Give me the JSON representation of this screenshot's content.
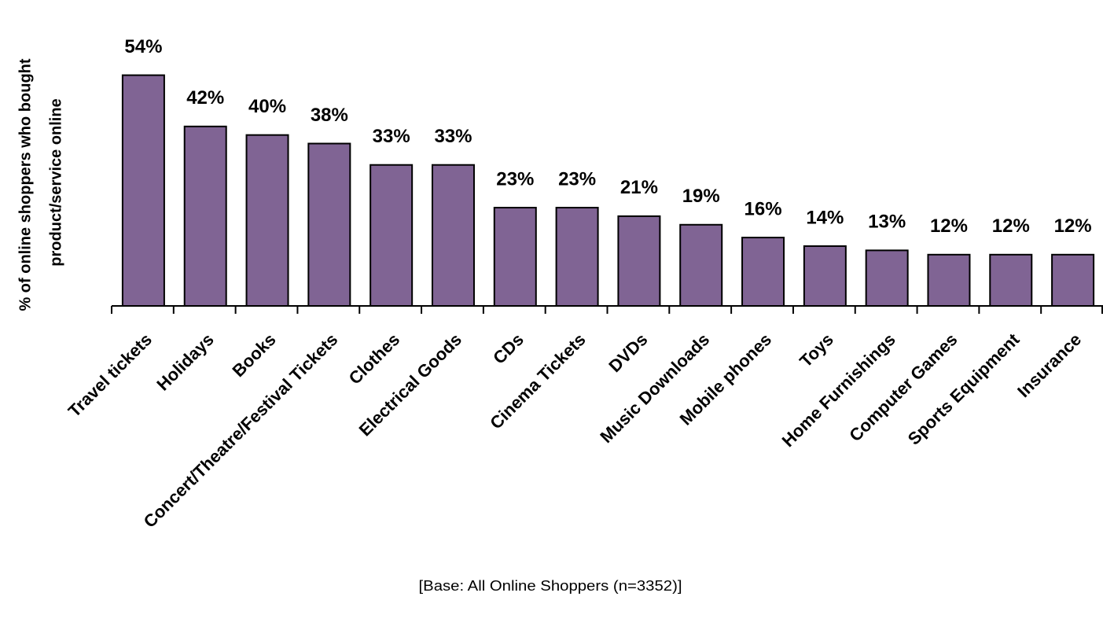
{
  "chart_data": {
    "type": "bar",
    "ylabel": [
      "% of online shoppers who bought",
      "product/service online"
    ],
    "categories": [
      "Travel tickets",
      "Holidays",
      "Books",
      "Concert/Theatre/Festival Tickets",
      "Clothes",
      "Electrical Goods",
      "CDs",
      "Cinema Tickets",
      "DVDs",
      "Music Downloads",
      "Mobile phones",
      "Toys",
      "Home Furnishings",
      "Computer Games",
      "Sports Equipment",
      "Insurance"
    ],
    "values": [
      54,
      42,
      40,
      38,
      33,
      33,
      23,
      23,
      21,
      19,
      16,
      14,
      13,
      12,
      12,
      12
    ],
    "value_labels": [
      "54%",
      "42%",
      "40%",
      "38%",
      "33%",
      "33%",
      "23%",
      "23%",
      "21%",
      "19%",
      "16%",
      "14%",
      "13%",
      "12%",
      "12%",
      "12%"
    ],
    "color": "#806494",
    "ylim": [
      0,
      60
    ],
    "footnote": "[Base: All Online Shoppers (n=3352)]"
  }
}
